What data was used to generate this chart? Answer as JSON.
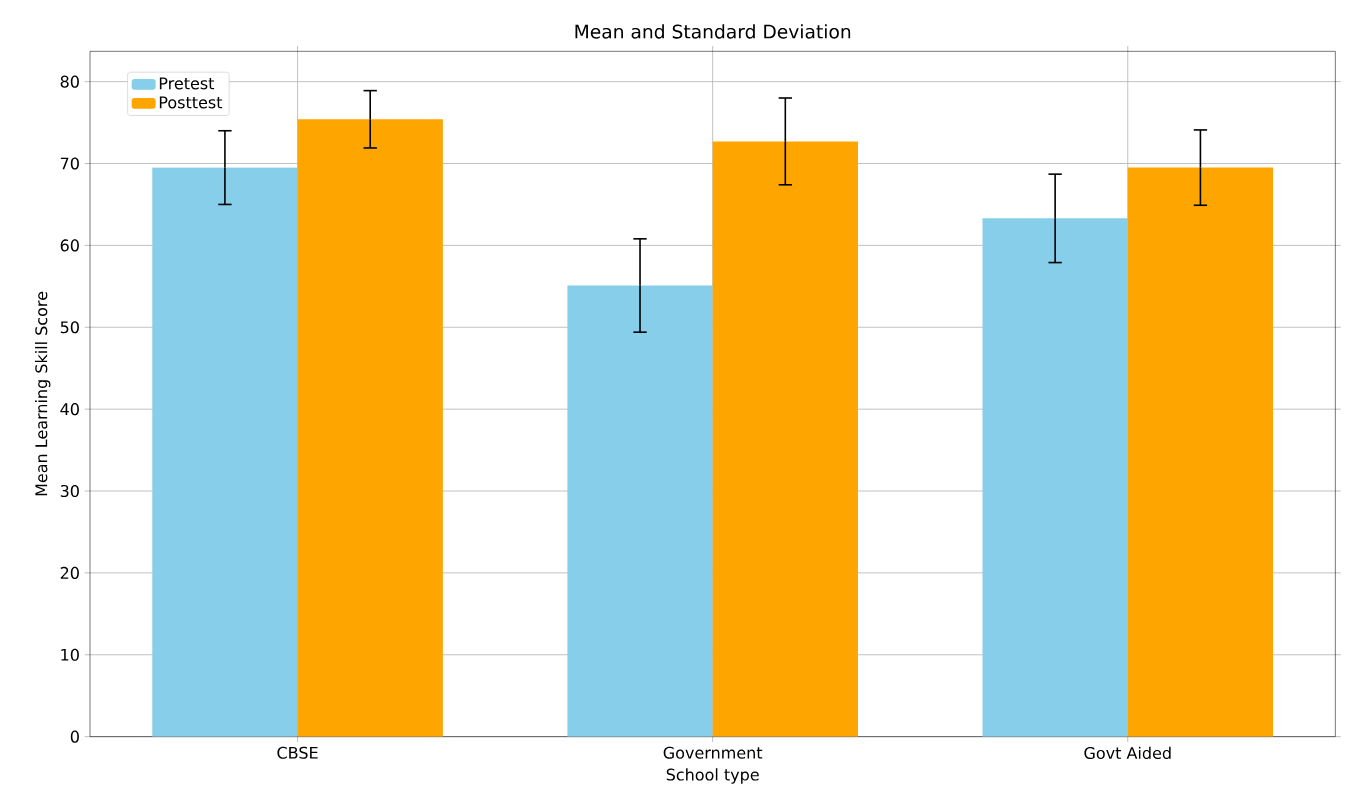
{
  "chart_data": {
    "type": "bar",
    "title": "Mean and Standard Deviation",
    "xlabel": "School type",
    "ylabel": "Mean Learning Skill Score",
    "categories": [
      "CBSE",
      "Government",
      "Govt Aided"
    ],
    "series": [
      {
        "name": "Pretest",
        "color": "#87ceeb",
        "values": [
          69.5,
          55.1,
          63.3
        ],
        "errors": [
          4.5,
          5.7,
          5.4
        ]
      },
      {
        "name": "Posttest",
        "color": "#ffa500",
        "values": [
          75.4,
          72.7,
          69.5
        ],
        "errors": [
          3.5,
          5.3,
          4.6
        ]
      }
    ],
    "ylim": [
      0,
      83.7
    ],
    "yticks": [
      0,
      10,
      20,
      30,
      40,
      50,
      60,
      70,
      80
    ],
    "grid": true,
    "legend": "top left"
  }
}
